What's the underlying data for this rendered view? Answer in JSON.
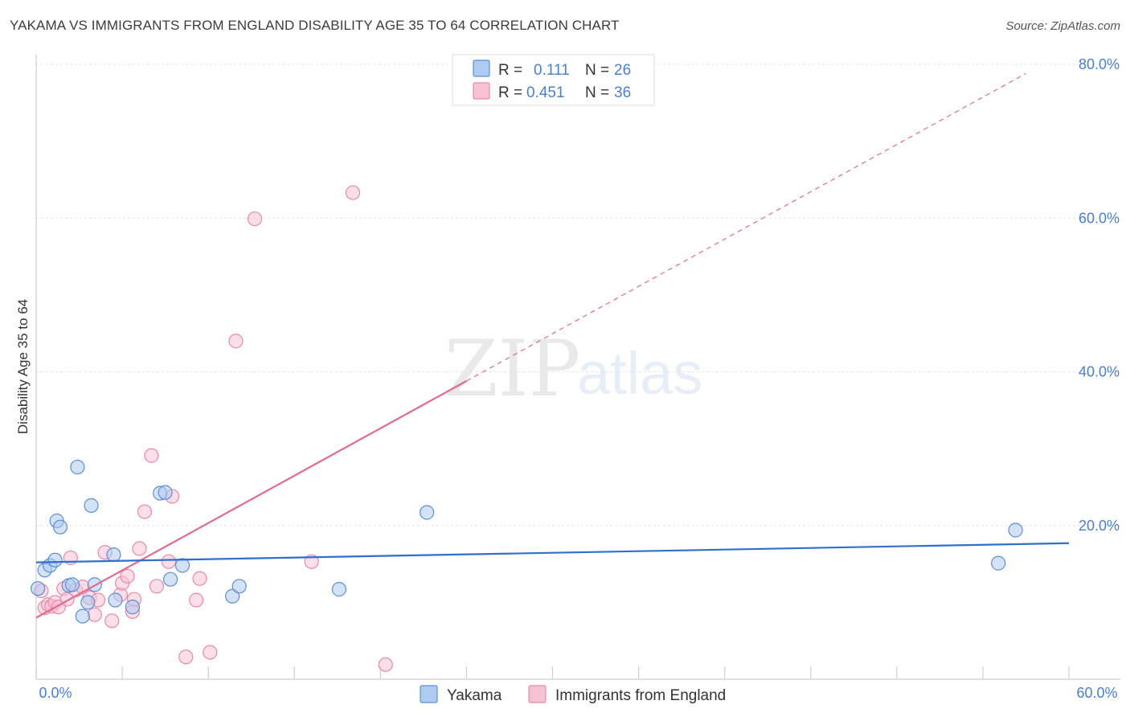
{
  "header": {
    "title": "YAKAMA VS IMMIGRANTS FROM ENGLAND DISABILITY AGE 35 TO 64 CORRELATION CHART",
    "source": "Source: ZipAtlas.com"
  },
  "watermark": {
    "zip": "ZIP",
    "atlas": "atlas"
  },
  "colors": {
    "yakama_fill": "#aecbf0",
    "yakama_stroke": "#5b8fd6",
    "yakama_line": "#2f6fcf",
    "england_fill": "#f7c3d3",
    "england_stroke": "#e889a8",
    "england_line": "#e06a92",
    "label_blue": "#4a7fd0"
  },
  "legend": {
    "rows": [
      {
        "r_label": "R =",
        "r_value": "0.111",
        "n_label": "N =",
        "n_value": "26"
      },
      {
        "r_label": "R =",
        "r_value": "0.451",
        "n_label": "N =",
        "n_value": "36"
      }
    ]
  },
  "bottom_legend": {
    "series1": "Yakama",
    "series2": "Immigrants from England"
  },
  "chart_data": {
    "type": "scatter",
    "title": "YAKAMA VS IMMIGRANTS FROM ENGLAND DISABILITY AGE 35 TO 64 CORRELATION CHART",
    "xlabel": "",
    "ylabel": "Disability Age 35 to 64",
    "xlim": [
      0,
      60
    ],
    "ylim": [
      0,
      80
    ],
    "x_tick_labels": [
      "0.0%",
      "60.0%"
    ],
    "y_ticks": [
      20,
      40,
      60,
      80
    ],
    "y_tick_labels": [
      "20.0%",
      "40.0%",
      "60.0%",
      "80.0%"
    ],
    "series": [
      {
        "name": "Yakama",
        "r": 0.111,
        "n": 26,
        "trend": {
          "x0": 0,
          "y0": 15.2,
          "x1": 60,
          "y1": 17.7
        },
        "points": [
          [
            0.1,
            11.8
          ],
          [
            0.5,
            14.2
          ],
          [
            0.8,
            14.8
          ],
          [
            1.1,
            15.5
          ],
          [
            1.2,
            20.6
          ],
          [
            1.4,
            19.8
          ],
          [
            1.9,
            12.2
          ],
          [
            2.1,
            12.3
          ],
          [
            2.4,
            27.6
          ],
          [
            2.7,
            8.2
          ],
          [
            3.0,
            10.0
          ],
          [
            3.2,
            22.6
          ],
          [
            3.4,
            12.3
          ],
          [
            4.5,
            16.2
          ],
          [
            4.6,
            10.3
          ],
          [
            5.6,
            9.4
          ],
          [
            7.2,
            24.2
          ],
          [
            7.5,
            24.3
          ],
          [
            7.8,
            13.0
          ],
          [
            8.5,
            14.8
          ],
          [
            11.4,
            10.8
          ],
          [
            11.8,
            12.1
          ],
          [
            17.6,
            11.7
          ],
          [
            22.7,
            21.7
          ],
          [
            55.9,
            15.1
          ],
          [
            56.9,
            19.4
          ]
        ]
      },
      {
        "name": "Immigrants from England",
        "r": 0.451,
        "n": 36,
        "trend_solid": {
          "x0": 0,
          "y0": 8.0,
          "x1": 25,
          "y1": 38.8
        },
        "trend_dashed": {
          "x0": 25,
          "y0": 38.8,
          "x1": 57.5,
          "y1": 78.8
        },
        "points": [
          [
            0.3,
            11.5
          ],
          [
            0.5,
            9.3
          ],
          [
            0.7,
            9.7
          ],
          [
            0.9,
            9.5
          ],
          [
            1.1,
            10.0
          ],
          [
            1.3,
            9.4
          ],
          [
            1.6,
            11.8
          ],
          [
            1.8,
            10.4
          ],
          [
            2.0,
            15.8
          ],
          [
            2.3,
            11.6
          ],
          [
            2.7,
            12.0
          ],
          [
            3.1,
            10.6
          ],
          [
            3.4,
            8.4
          ],
          [
            3.6,
            10.3
          ],
          [
            4.0,
            16.5
          ],
          [
            4.4,
            7.6
          ],
          [
            4.9,
            11.0
          ],
          [
            5.0,
            12.5
          ],
          [
            5.3,
            13.4
          ],
          [
            5.6,
            8.8
          ],
          [
            5.7,
            10.4
          ],
          [
            6.0,
            17.0
          ],
          [
            6.3,
            21.8
          ],
          [
            6.7,
            29.1
          ],
          [
            7.0,
            12.1
          ],
          [
            7.7,
            15.3
          ],
          [
            7.9,
            23.8
          ],
          [
            8.7,
            2.9
          ],
          [
            9.3,
            10.3
          ],
          [
            9.5,
            13.1
          ],
          [
            10.1,
            3.5
          ],
          [
            11.6,
            44.0
          ],
          [
            12.7,
            59.9
          ],
          [
            16.0,
            15.3
          ],
          [
            18.4,
            63.3
          ],
          [
            20.3,
            1.9
          ]
        ]
      }
    ]
  }
}
